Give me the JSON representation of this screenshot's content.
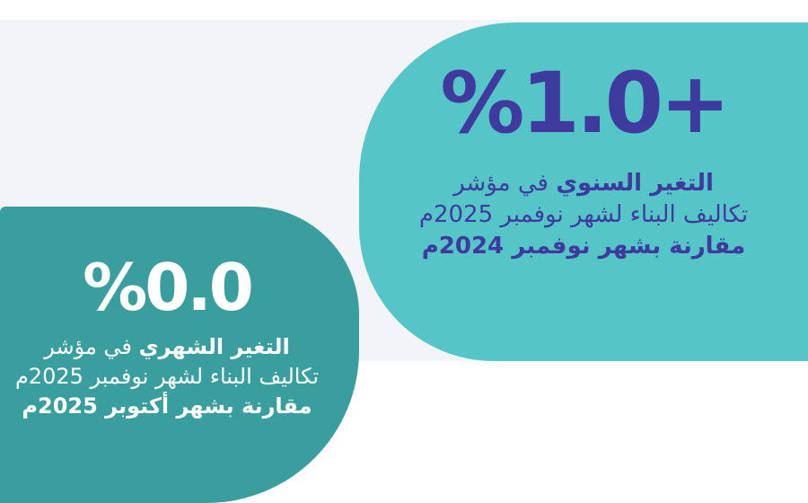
{
  "colors": {
    "page_background": "#ffffff",
    "panel_background": "#f3f4f8",
    "annual_shape": "#55c5c7",
    "monthly_shape": "#3a9e9e",
    "accent_navy": "#3f3a9e",
    "monthly_text": "#ffffff"
  },
  "annual_card": {
    "value": "%1.0+",
    "line1_bold": "التغير السنوي",
    "line1_rest": "في مؤشر",
    "line2": "تكاليف البناء لشهر نوفمبر 2025م",
    "line3": "مقارنة بشهر نوفمبر 2024م"
  },
  "monthly_card": {
    "value": "%0.0",
    "line1_bold": "التغير الشهري",
    "line1_rest": "في مؤشر",
    "line2": "تكاليف البناء لشهر نوفمبر 2025م",
    "line3": "مقارنة بشهر أكتوبر 2025م"
  },
  "chart_data": {
    "type": "table",
    "items": [
      {
        "label": "التغير السنوي في مؤشر تكاليف البناء لشهر نوفمبر 2025م مقارنة بشهر نوفمبر 2024م",
        "value": 1.0,
        "unit": "%",
        "display": "%1.0+"
      },
      {
        "label": "التغير الشهري في مؤشر تكاليف البناء لشهر نوفمبر 2025م مقارنة بشهر أكتوبر 2025م",
        "value": 0.0,
        "unit": "%",
        "display": "%0.0"
      }
    ]
  }
}
